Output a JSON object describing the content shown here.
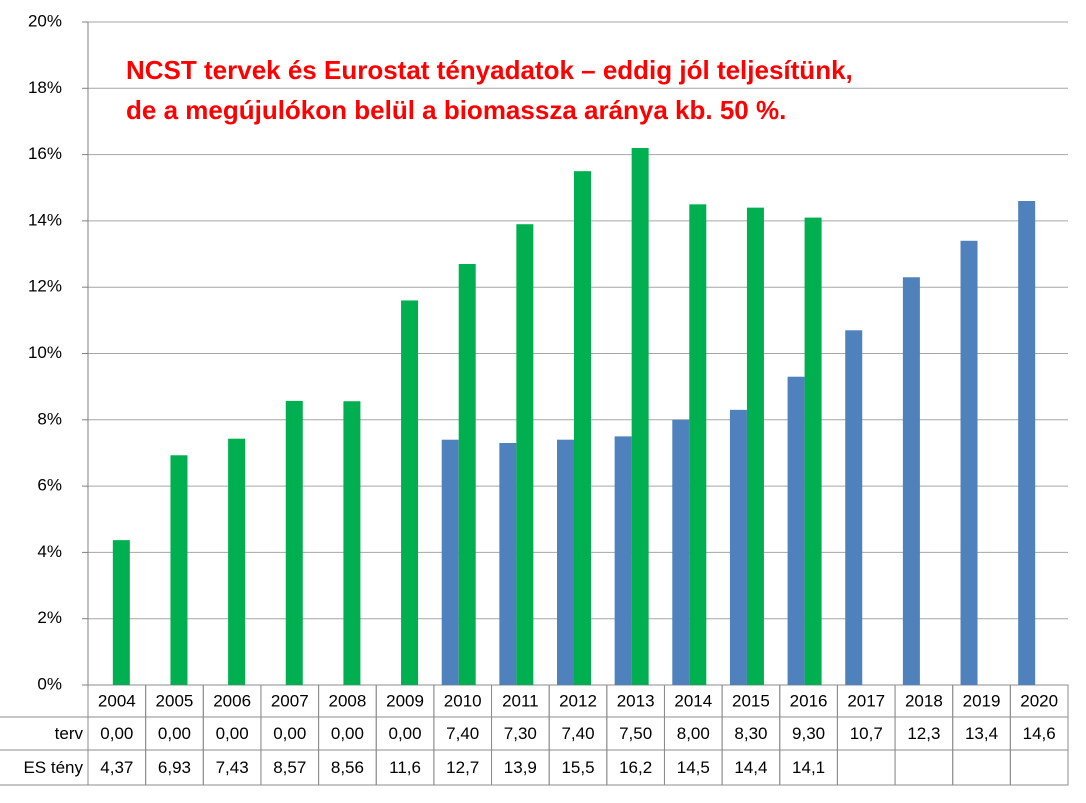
{
  "chart_data": {
    "type": "bar",
    "title": [
      "NCST tervek és Eurostat tényadatok – eddig jól teljesítünk,",
      "de a megújulókon belül a biomassza aránya kb. 50 %."
    ],
    "categories": [
      "2004",
      "2005",
      "2006",
      "2007",
      "2008",
      "2009",
      "2010",
      "2011",
      "2012",
      "2013",
      "2014",
      "2015",
      "2016",
      "2017",
      "2018",
      "2019",
      "2020"
    ],
    "series": [
      {
        "name": "terv",
        "color": "#4f81bd",
        "values": [
          0,
          0,
          0,
          0,
          0,
          0,
          7.4,
          7.3,
          7.4,
          7.5,
          8,
          8.3,
          9.3,
          10.7,
          12.3,
          13.4,
          14.6
        ],
        "value_labels": [
          "0,00",
          "0,00",
          "0,00",
          "0,00",
          "0,00",
          "0,00",
          "7,40",
          "7,30",
          "7,40",
          "7,50",
          "8,00",
          "8,30",
          "9,30",
          "10,7",
          "12,3",
          "13,4",
          "14,6"
        ]
      },
      {
        "name": "ES tény",
        "color": "#00b050",
        "values": [
          4.37,
          6.93,
          7.43,
          8.57,
          8.56,
          11.6,
          12.7,
          13.9,
          15.5,
          16.2,
          14.5,
          14.4,
          14.1,
          null,
          null,
          null,
          null
        ],
        "value_labels": [
          "4,37",
          "6,93",
          "7,43",
          "8,57",
          "8,56",
          "11,6",
          "12,7",
          "13,9",
          "15,5",
          "16,2",
          "14,5",
          "14,4",
          "14,1",
          null,
          null,
          null,
          null
        ]
      }
    ],
    "ylim": [
      0,
      20
    ],
    "yticks": [
      {
        "value": 0,
        "label": "0%"
      },
      {
        "value": 2,
        "label": "2%"
      },
      {
        "value": 4,
        "label": "4%"
      },
      {
        "value": 6,
        "label": "6%"
      },
      {
        "value": 8,
        "label": "8%"
      },
      {
        "value": 10,
        "label": "10%"
      },
      {
        "value": 12,
        "label": "12%"
      },
      {
        "value": 14,
        "label": "14%"
      },
      {
        "value": 16,
        "label": "16%"
      },
      {
        "value": 18,
        "label": "18%"
      },
      {
        "value": 20,
        "label": "20%"
      }
    ],
    "grid": true
  }
}
